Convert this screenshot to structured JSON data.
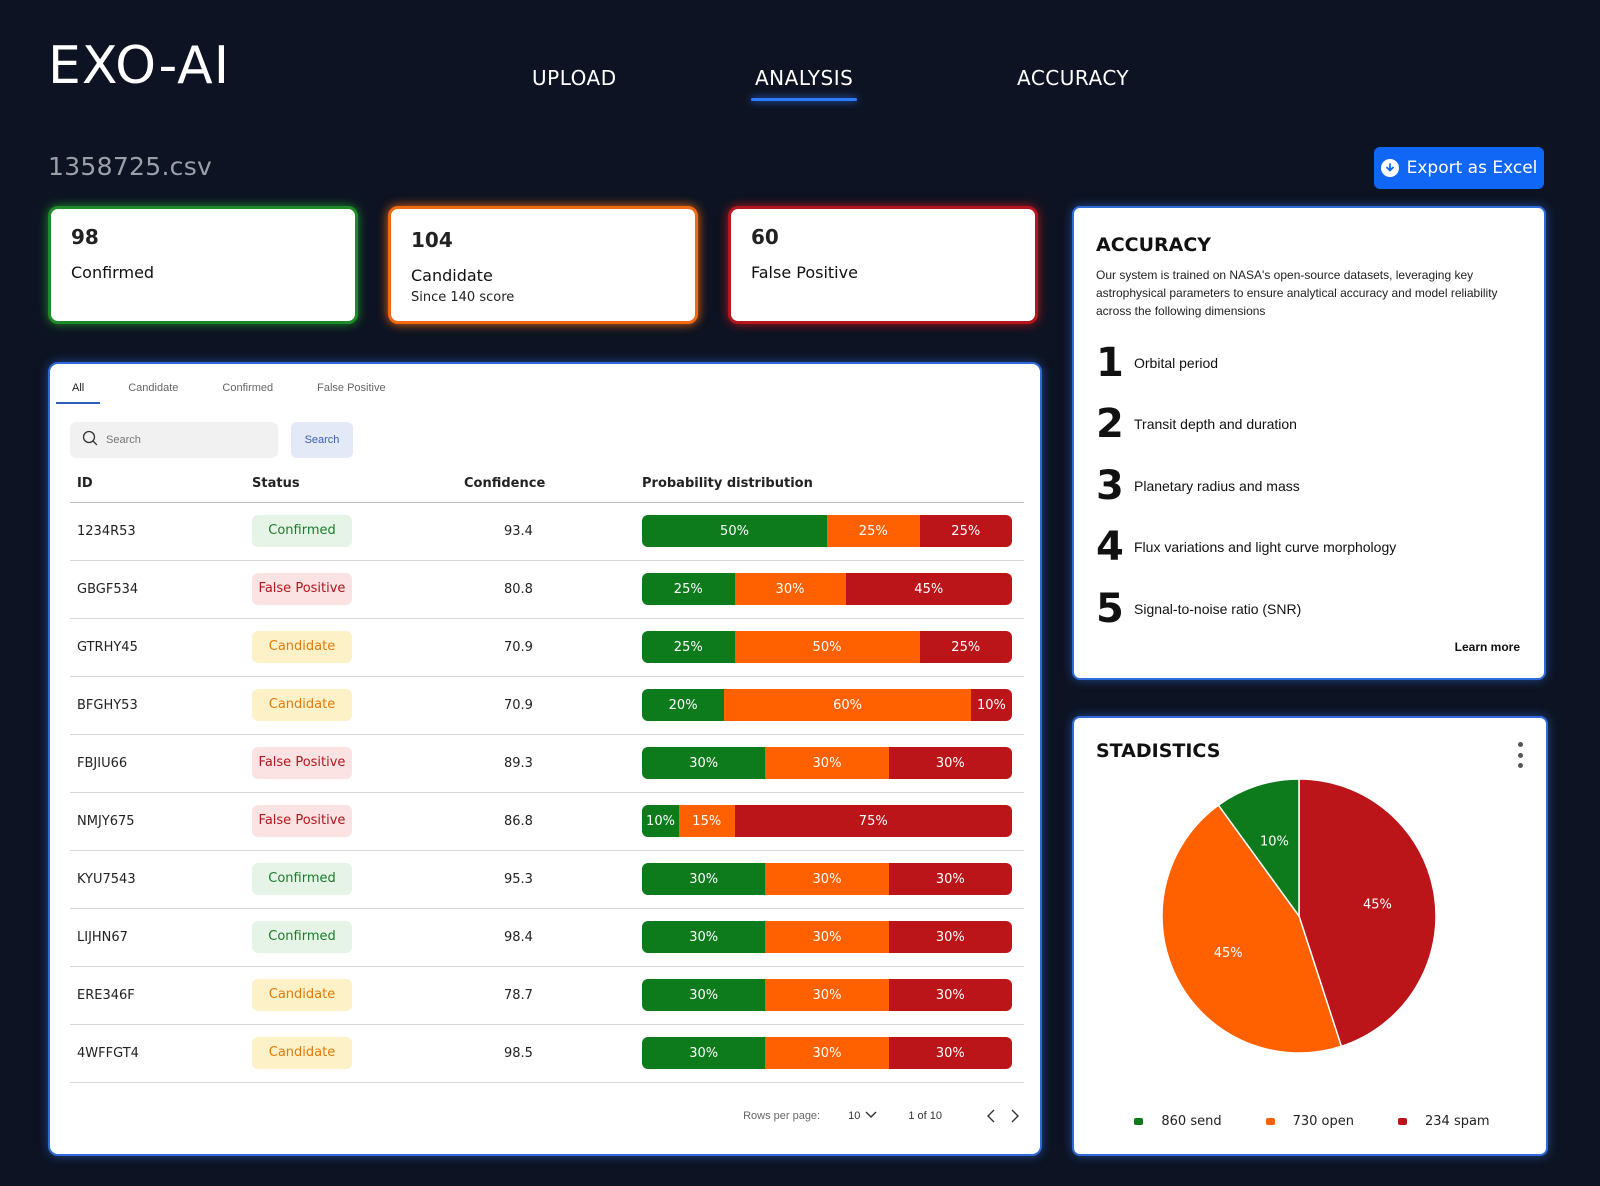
{
  "header": {
    "logo": "EXO-AI",
    "nav": [
      {
        "label": "UPLOAD",
        "active": false
      },
      {
        "label": "ANALYSIS",
        "active": true
      },
      {
        "label": "ACCURACY",
        "active": false
      }
    ]
  },
  "file": {
    "name": "1358725.csv",
    "export_label": "Export as Excel"
  },
  "stats": [
    {
      "value": "98",
      "label": "Confirmed",
      "sub": "",
      "color": "#1f8a2a"
    },
    {
      "value": "104",
      "label": "Candidate",
      "sub": "Since 140 score",
      "color": "#ef6a10"
    },
    {
      "value": "60",
      "label": "False Positive",
      "sub": "",
      "color": "#b3161c"
    }
  ],
  "table": {
    "tabs": [
      "All",
      "Candidate",
      "Confirmed",
      "False Positive"
    ],
    "active_tab": "All",
    "search_placeholder": "Search",
    "search_button": "Search",
    "columns": [
      "ID",
      "Status",
      "Confidence",
      "Probability distribution"
    ],
    "rows": [
      {
        "id": "1234R53",
        "status": "Confirmed",
        "confidence": "93.4",
        "dist": [
          50,
          25,
          25
        ]
      },
      {
        "id": "GBGF534",
        "status": "False Positive",
        "confidence": "80.8",
        "dist": [
          25,
          30,
          45
        ]
      },
      {
        "id": "GTRHY45",
        "status": "Candidate",
        "confidence": "70.9",
        "dist": [
          25,
          50,
          25
        ]
      },
      {
        "id": "BFGHY53",
        "status": "Candidate",
        "confidence": "70.9",
        "dist": [
          20,
          60,
          10
        ]
      },
      {
        "id": "FBJIU66",
        "status": "False Positive",
        "confidence": "89.3",
        "dist": [
          30,
          30,
          30
        ]
      },
      {
        "id": "NMJY675",
        "status": "False Positive",
        "confidence": "86.8",
        "dist": [
          10,
          15,
          75
        ]
      },
      {
        "id": "KYU7543",
        "status": "Confirmed",
        "confidence": "95.3",
        "dist": [
          30,
          30,
          30
        ]
      },
      {
        "id": "LIJHN67",
        "status": "Confirmed",
        "confidence": "98.4",
        "dist": [
          30,
          30,
          30
        ]
      },
      {
        "id": "ERE346F",
        "status": "Candidate",
        "confidence": "78.7",
        "dist": [
          30,
          30,
          30
        ]
      },
      {
        "id": "4WFFGT4",
        "status": "Candidate",
        "confidence": "98.5",
        "dist": [
          30,
          30,
          30
        ]
      }
    ],
    "pagination": {
      "rows_per_page_label": "Rows per page:",
      "rows_per_page": "10",
      "range": "1 of 10"
    }
  },
  "accuracy": {
    "title": "ACCURACY",
    "description": "Our system is trained on NASA's open-source datasets, leveraging key astrophysical parameters to ensure analytical accuracy and model reliability across the following dimensions",
    "items": [
      {
        "num": "1",
        "text": "Orbital period"
      },
      {
        "num": "2",
        "text": "Transit depth and duration"
      },
      {
        "num": "3",
        "text": "Planetary radius and mass"
      },
      {
        "num": "4",
        "text": "Flux variations and light curve morphology"
      },
      {
        "num": "5",
        "text": "Signal-to-noise ratio (SNR)"
      }
    ],
    "learn_more": "Learn more"
  },
  "statistics": {
    "title": "STADISTICS",
    "menu_icon": "more-vertical-icon"
  },
  "chart_data": {
    "type": "pie",
    "title": "STADISTICS",
    "slices": [
      {
        "label": "10%",
        "value": 10,
        "color": "#0d7a1c"
      },
      {
        "label": "45%",
        "value": 45,
        "color": "#bb1519"
      },
      {
        "label": "45%",
        "value": 45,
        "color": "#ff6000"
      }
    ],
    "slice_order_clockwise_from_top": [
      "red",
      "orange",
      "green"
    ],
    "legend": [
      {
        "label": "860 send",
        "color": "#0d7a1c"
      },
      {
        "label": "730 open",
        "color": "#ff6000"
      },
      {
        "label": "234 spam",
        "color": "#bb1519"
      }
    ]
  },
  "colors": {
    "background": "#0d1322",
    "accent": "#1167f5",
    "confirmed": "#0d7a1c",
    "candidate": "#ff6000",
    "false_positive": "#bb1519"
  }
}
